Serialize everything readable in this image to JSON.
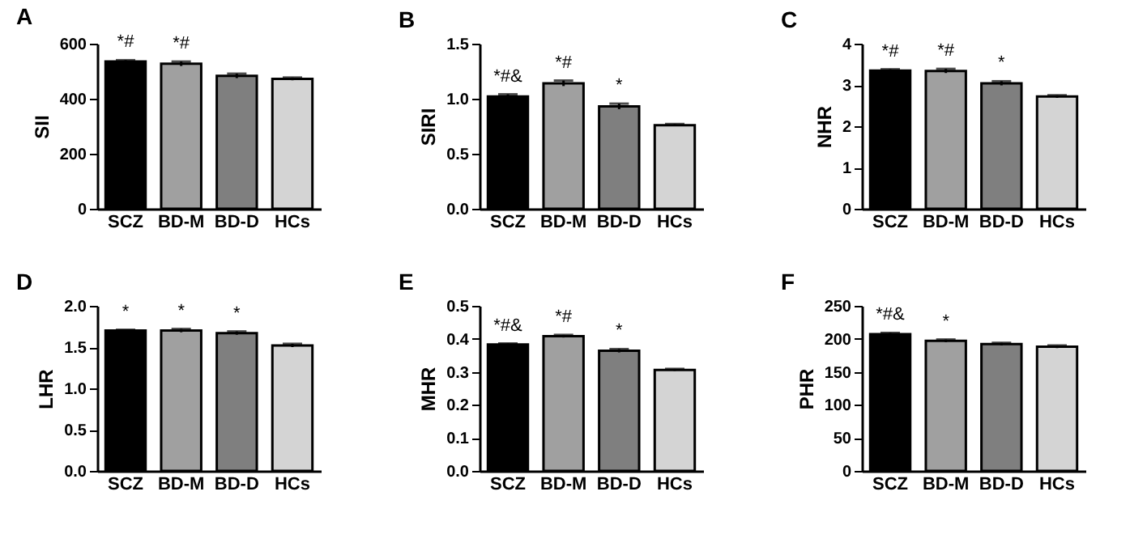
{
  "chart_data": [
    {
      "type": "bar",
      "title": "A",
      "ylabel": "SII",
      "categories": [
        "SCZ",
        "BD-M",
        "BD-D",
        "HCs"
      ],
      "values": [
        535,
        527,
        483,
        472
      ],
      "errors": [
        5,
        8,
        8,
        5
      ],
      "colors": [
        "#000000",
        "#a0a0a0",
        "#7f7f7f",
        "#d4d4d4"
      ],
      "ylim": [
        0,
        600
      ],
      "yticks": [
        0,
        200,
        400,
        600
      ],
      "annotations": [
        "*#",
        "*#"
      ]
    },
    {
      "type": "bar",
      "title": "B",
      "ylabel": "SIRI",
      "categories": [
        "SCZ",
        "BD-M",
        "BD-D",
        "HCs"
      ],
      "values": [
        1.02,
        1.14,
        0.93,
        0.76
      ],
      "errors": [
        0.02,
        0.025,
        0.025,
        0.01
      ],
      "colors": [
        "#000000",
        "#a0a0a0",
        "#7f7f7f",
        "#d4d4d4"
      ],
      "ylim": [
        0,
        1.5
      ],
      "yticks": [
        {
          "value": 0,
          "label": "0.0"
        },
        0.5,
        {
          "value": 1,
          "label": "1.0"
        },
        1.5
      ],
      "annotations": [
        "*#&",
        "*#",
        "*"
      ]
    },
    {
      "type": "bar",
      "title": "C",
      "ylabel": "NHR",
      "categories": [
        "SCZ",
        "BD-M",
        "BD-D",
        "HCs"
      ],
      "values": [
        3.35,
        3.34,
        3.04,
        2.72
      ],
      "errors": [
        0.03,
        0.05,
        0.05,
        0.03
      ],
      "colors": [
        "#000000",
        "#a0a0a0",
        "#7f7f7f",
        "#d4d4d4"
      ],
      "ylim": [
        0,
        4
      ],
      "yticks": [
        0,
        1,
        2,
        3,
        4
      ],
      "annotations": [
        "*#",
        "*#",
        "*"
      ]
    },
    {
      "type": "bar",
      "title": "D",
      "ylabel": "LHR",
      "categories": [
        "SCZ",
        "BD-M",
        "BD-D",
        "HCs"
      ],
      "values": [
        1.7,
        1.7,
        1.67,
        1.52
      ],
      "errors": [
        0.01,
        0.02,
        0.02,
        0.02
      ],
      "colors": [
        "#000000",
        "#a0a0a0",
        "#7f7f7f",
        "#d4d4d4"
      ],
      "ylim": [
        0,
        2
      ],
      "yticks": [
        {
          "value": 0,
          "label": "0.0"
        },
        0.5,
        {
          "value": 1,
          "label": "1.0"
        },
        1.5,
        {
          "value": 2,
          "label": "2.0"
        }
      ],
      "annotations": [
        "*",
        "*",
        "*"
      ]
    },
    {
      "type": "bar",
      "title": "E",
      "ylabel": "MHR",
      "categories": [
        "SCZ",
        "BD-M",
        "BD-D",
        "HCs"
      ],
      "values": [
        0.383,
        0.408,
        0.364,
        0.306
      ],
      "errors": [
        0.003,
        0.004,
        0.005,
        0.003
      ],
      "colors": [
        "#000000",
        "#a0a0a0",
        "#7f7f7f",
        "#d4d4d4"
      ],
      "ylim": [
        0,
        0.5
      ],
      "yticks": [
        {
          "value": 0,
          "label": "0.0"
        },
        0.1,
        0.2,
        0.3,
        0.4,
        0.5
      ],
      "annotations": [
        "*#&",
        "*#",
        "*"
      ]
    },
    {
      "type": "bar",
      "title": "F",
      "ylabel": "PHR",
      "categories": [
        "SCZ",
        "BD-M",
        "BD-D",
        "HCs"
      ],
      "values": [
        207,
        197,
        192,
        188
      ],
      "errors": [
        2,
        2,
        2,
        2
      ],
      "colors": [
        "#000000",
        "#a0a0a0",
        "#7f7f7f",
        "#d4d4d4"
      ],
      "ylim": [
        0,
        250
      ],
      "yticks": [
        0,
        50,
        100,
        150,
        200,
        250
      ],
      "annotations": [
        "*#&",
        "*"
      ]
    }
  ]
}
